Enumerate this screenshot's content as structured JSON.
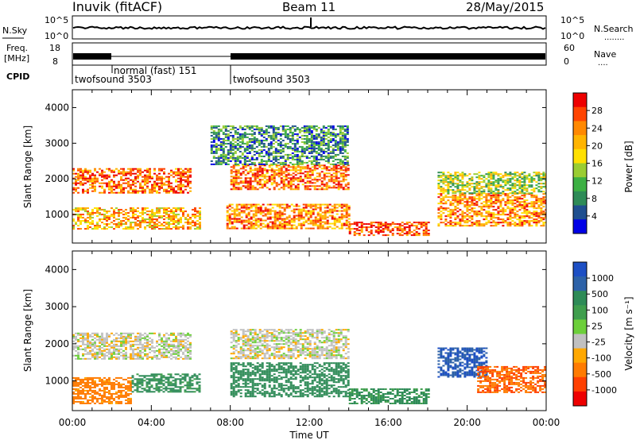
{
  "header": {
    "station": "Inuvik (fitACF)",
    "beam": "Beam 11",
    "date": "28/May/2015"
  },
  "noise_panel": {
    "left_label": "N.Sky",
    "right_label": "N.Search",
    "right_legend": "........",
    "tick_top": "10^5",
    "tick_bottom": "10^0"
  },
  "freq_panel": {
    "left_label_1": "Freq.",
    "left_label_2": "[MHz]",
    "right_label": "Nave",
    "right_legend": "....",
    "left_ticks": [
      "18",
      "8"
    ],
    "right_ticks": [
      "60",
      "0"
    ]
  },
  "cpid_panel": {
    "label": "CPID",
    "segments": [
      {
        "text": "twofsound 3503",
        "start_hour": 0
      },
      {
        "text": "normal (fast) 151",
        "start_hour": 2
      },
      {
        "text": "twofsound 3503",
        "start_hour": 8
      }
    ]
  },
  "x_axis": {
    "label": "Time UT",
    "ticks": [
      "00:00",
      "04:00",
      "08:00",
      "12:00",
      "16:00",
      "20:00",
      "00:00"
    ]
  },
  "power_colorbar": {
    "label": "Power [dB]",
    "ticks": [
      "28",
      "24",
      "20",
      "16",
      "12",
      "8",
      "4"
    ],
    "colors": [
      "#ee0000",
      "#ff4400",
      "#ff8800",
      "#ffb400",
      "#ffe000",
      "#9acd32",
      "#3cb043",
      "#2e8b57",
      "#1f4f8f",
      "#0000e6"
    ]
  },
  "velocity_colorbar": {
    "label": "Velocity [m s⁻¹]",
    "ticks": [
      "1000",
      "500",
      "100",
      "25",
      "-25",
      "-100",
      "-500",
      "-1000"
    ],
    "colors": [
      "#1d4fc4",
      "#2d62a8",
      "#2e8b57",
      "#3f9e4d",
      "#6ccf3a",
      "#c0c0c0",
      "#ffa800",
      "#ff7b00",
      "#ff4000",
      "#ee0000"
    ]
  },
  "chart_data": [
    {
      "type": "heatmap",
      "title": "",
      "xlabel": "Time UT",
      "ylabel": "Slant Range [km]",
      "xlim": [
        0,
        24
      ],
      "ylim": [
        200,
        4500
      ],
      "y_ticks": [
        1000,
        2000,
        3000,
        4000
      ],
      "colorbar": "Power [dB]",
      "zlim": [
        0,
        30
      ],
      "scatter_regions": [
        {
          "t0": 0.0,
          "t1": 6.0,
          "r0": 1600,
          "r1": 2300,
          "value": 24
        },
        {
          "t0": 0.0,
          "t1": 6.5,
          "r0": 600,
          "r1": 1200,
          "value": 20
        },
        {
          "t0": 8.0,
          "t1": 14.0,
          "r0": 1700,
          "r1": 2400,
          "value": 24
        },
        {
          "t0": 7.8,
          "t1": 14.0,
          "r0": 600,
          "r1": 1300,
          "value": 22
        },
        {
          "t0": 14.0,
          "t1": 18.0,
          "r0": 400,
          "r1": 800,
          "value": 26
        },
        {
          "t0": 18.5,
          "t1": 24.0,
          "r0": 700,
          "r1": 1600,
          "value": 22
        },
        {
          "t0": 18.5,
          "t1": 24.0,
          "r0": 1600,
          "r1": 2200,
          "value": 14
        },
        {
          "t0": 7.0,
          "t1": 14.0,
          "r0": 2400,
          "r1": 3500,
          "value": 8
        }
      ]
    },
    {
      "type": "heatmap",
      "title": "",
      "xlabel": "Time UT",
      "ylabel": "Slant Range [km]",
      "xlim": [
        0,
        24
      ],
      "ylim": [
        200,
        4500
      ],
      "y_ticks": [
        1000,
        2000,
        3000,
        4000
      ],
      "colorbar": "Velocity [m s⁻¹]",
      "zlim": [
        -1000,
        1000
      ],
      "scatter_regions": [
        {
          "t0": 0.0,
          "t1": 6.0,
          "r0": 1600,
          "r1": 2300,
          "value": 0
        },
        {
          "t0": 8.0,
          "t1": 14.0,
          "r0": 1600,
          "r1": 2400,
          "value": 0
        },
        {
          "t0": 0.0,
          "t1": 3.0,
          "r0": 400,
          "r1": 1100,
          "value": -150
        },
        {
          "t0": 3.0,
          "t1": 6.5,
          "r0": 700,
          "r1": 1200,
          "value": 150
        },
        {
          "t0": 8.0,
          "t1": 14.0,
          "r0": 600,
          "r1": 1500,
          "value": 200
        },
        {
          "t0": 14.0,
          "t1": 18.0,
          "r0": 400,
          "r1": 800,
          "value": 150
        },
        {
          "t0": 18.5,
          "t1": 21.0,
          "r0": 1100,
          "r1": 1900,
          "value": 700
        },
        {
          "t0": 20.5,
          "t1": 24.0,
          "r0": 700,
          "r1": 1400,
          "value": -300
        }
      ]
    }
  ]
}
